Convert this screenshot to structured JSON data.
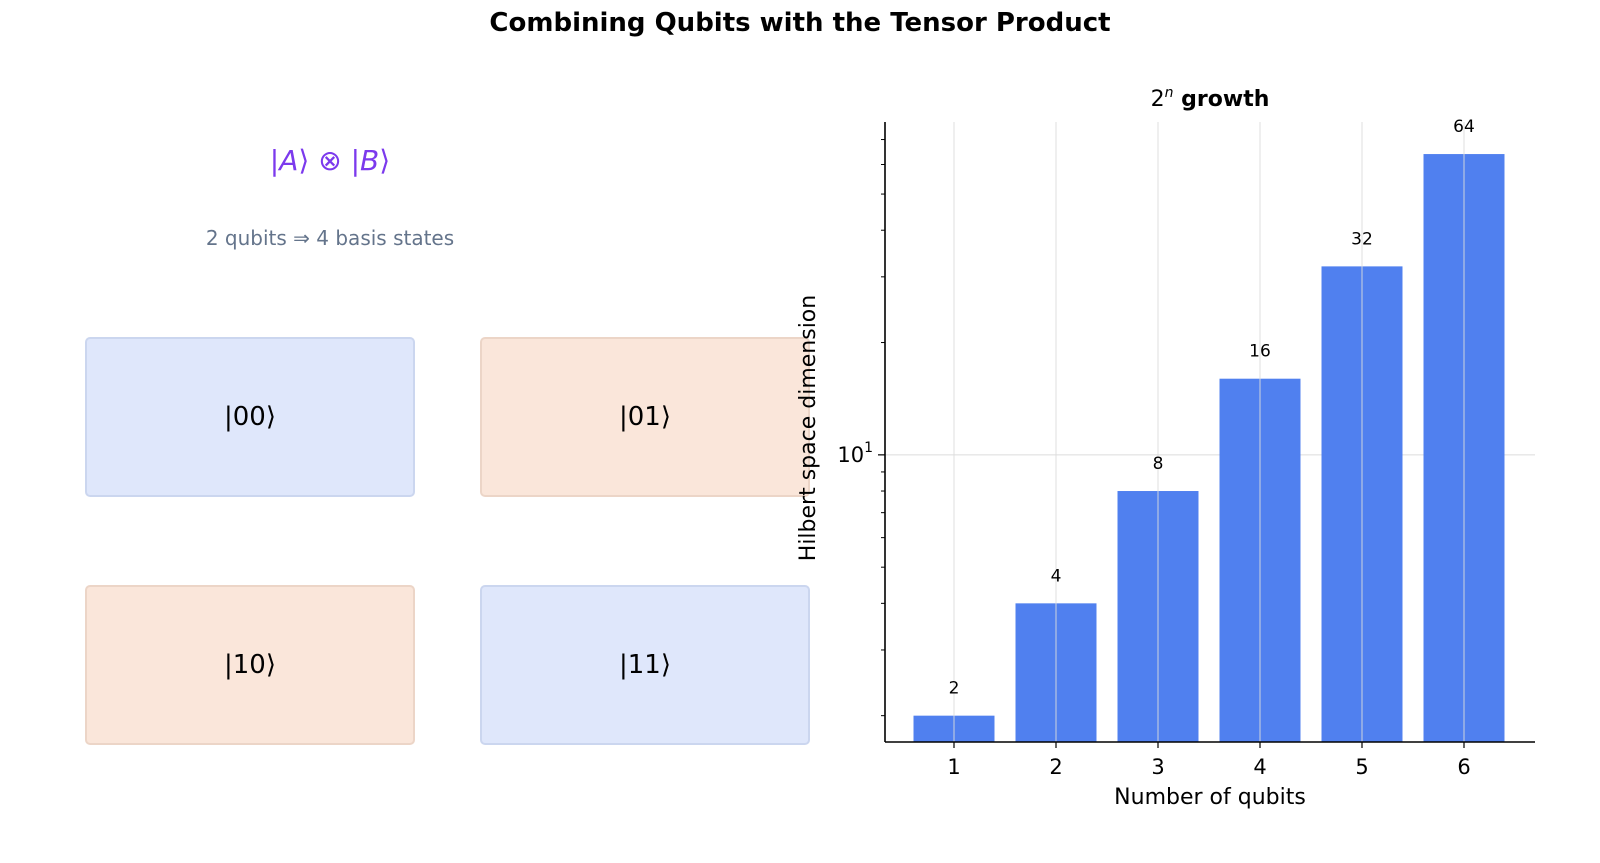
{
  "figure": {
    "title": "Combining Qubits with the Tensor Product"
  },
  "left_panel": {
    "formula": {
      "ket_a_open": "|",
      "ket_a_var": "A",
      "ket_a_close": "⟩",
      "tensor_symbol": "⊗",
      "ket_b_open": "|",
      "ket_b_var": "B",
      "ket_b_close": "⟩"
    },
    "subtitle": "2 qubits ⇒ 4 basis states",
    "basis_states": [
      {
        "label": "|00⟩",
        "color": "#dfe7fb"
      },
      {
        "label": "|01⟩",
        "color": "#fae6da"
      },
      {
        "label": "|10⟩",
        "color": "#fae6da"
      },
      {
        "label": "|11⟩",
        "color": "#dfe7fb"
      }
    ],
    "colors": {
      "formula": "#7c3aed",
      "subtitle": "#64748b",
      "blue_box": "#dfe7fb",
      "orange_box": "#fae6da"
    }
  },
  "chart_data": {
    "type": "bar",
    "title_base": "2",
    "title_exp": "n",
    "title_rest": "growth",
    "xlabel": "Number of qubits",
    "ylabel": "Hilbert space dimension",
    "categories": [
      "1",
      "2",
      "3",
      "4",
      "5",
      "6"
    ],
    "values": [
      2,
      4,
      8,
      16,
      32,
      64
    ],
    "data_labels": [
      "2",
      "4",
      "8",
      "16",
      "32",
      "64"
    ],
    "y_scale": "log",
    "ylim": [
      1.7,
      78
    ],
    "y_ticks": [
      {
        "value": 10,
        "base": "10",
        "exp": "1"
      }
    ],
    "grid": true,
    "bar_color": "#5080ef"
  }
}
